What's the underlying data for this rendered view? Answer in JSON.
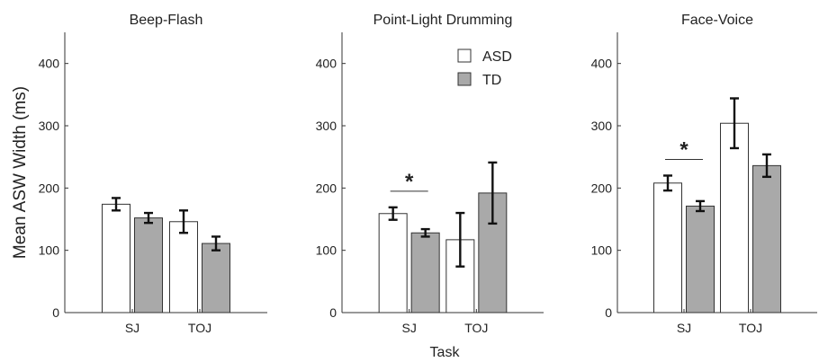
{
  "figure": {
    "ylabel": "Mean ASW Width (ms)",
    "xlabel": "Task"
  },
  "legend": {
    "placement": "top-right of middle panel",
    "entries": [
      {
        "label": "ASD",
        "color": "#ffffff"
      },
      {
        "label": "TD",
        "color": "#a9a9a9"
      }
    ]
  },
  "chart_data": [
    {
      "type": "bar",
      "title": "Beep-Flash",
      "categories": [
        "SJ",
        "TOJ"
      ],
      "ylim": [
        0,
        450
      ],
      "yticks": [
        "0",
        "100",
        "200",
        "300",
        "400"
      ],
      "series": [
        {
          "name": "ASD",
          "values": [
            174,
            146
          ],
          "error": [
            10,
            18
          ],
          "color": "#ffffff"
        },
        {
          "name": "TD",
          "values": [
            152,
            111
          ],
          "error": [
            8,
            11
          ],
          "color": "#a9a9a9"
        }
      ],
      "significance": []
    },
    {
      "type": "bar",
      "title": "Point-Light Drumming",
      "categories": [
        "SJ",
        "TOJ"
      ],
      "ylim": [
        0,
        450
      ],
      "yticks": [
        "0",
        "100",
        "200",
        "300",
        "400"
      ],
      "series": [
        {
          "name": "ASD",
          "values": [
            159,
            117
          ],
          "error": [
            10,
            43
          ],
          "color": "#ffffff"
        },
        {
          "name": "TD",
          "values": [
            128,
            192
          ],
          "error": [
            6,
            49
          ],
          "color": "#a9a9a9"
        }
      ],
      "significance": [
        {
          "category": "SJ",
          "label": "*"
        }
      ]
    },
    {
      "type": "bar",
      "title": "Face-Voice",
      "categories": [
        "SJ",
        "TOJ"
      ],
      "ylim": [
        0,
        450
      ],
      "yticks": [
        "0",
        "100",
        "200",
        "300",
        "400"
      ],
      "series": [
        {
          "name": "ASD",
          "values": [
            208,
            304
          ],
          "error": [
            12,
            40
          ],
          "color": "#ffffff"
        },
        {
          "name": "TD",
          "values": [
            171,
            236
          ],
          "error": [
            8,
            18
          ],
          "color": "#a9a9a9"
        }
      ],
      "significance": [
        {
          "category": "SJ",
          "label": "*"
        }
      ]
    }
  ]
}
